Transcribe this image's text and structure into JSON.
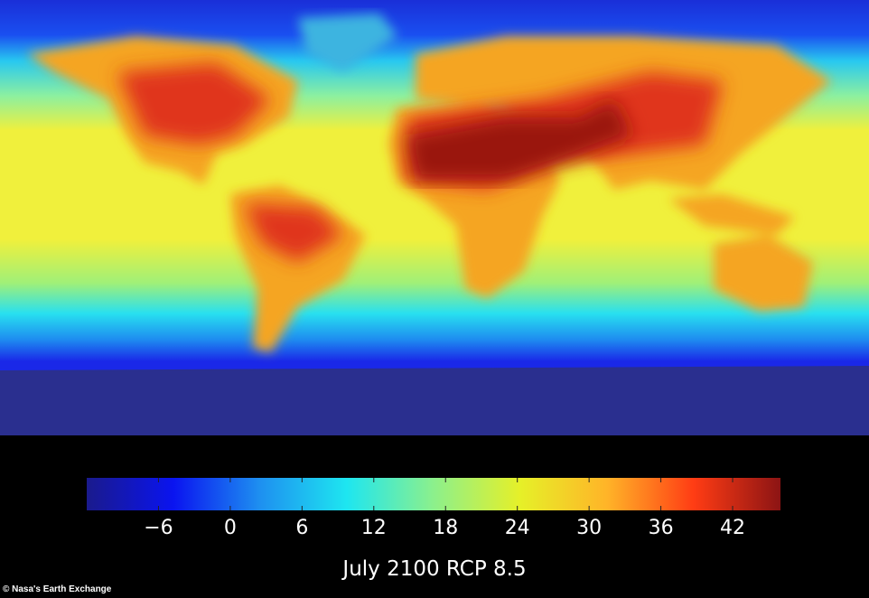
{
  "title": "July 2100 RCP 8.5",
  "credit": "© Nasa's Earth Exchange",
  "colorbar": {
    "range": [
      -12,
      46
    ],
    "ticks": [
      "−6",
      "0",
      "6",
      "12",
      "18",
      "24",
      "30",
      "36",
      "42"
    ],
    "tick_values": [
      -6,
      0,
      6,
      12,
      18,
      24,
      30,
      36,
      42
    ],
    "colormap": "jet",
    "colors": [
      "#1a1a8c",
      "#0a14f0",
      "#1e90f0",
      "#1ee6f0",
      "#8cf08c",
      "#e6f028",
      "#ffb428",
      "#ff3c14",
      "#8c1414"
    ]
  },
  "map": {
    "projection": "equirectangular",
    "variable": "surface temperature",
    "antarctica_color": "#2a2f8f"
  }
}
